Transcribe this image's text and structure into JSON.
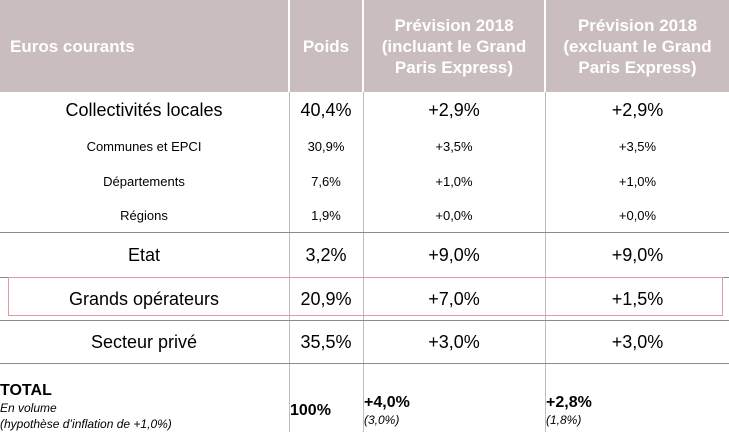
{
  "header": {
    "col_label": "Euros courants",
    "col_poids": "Poids",
    "col_with_gpe": "Prévision 2018\n(incluant le Grand\nParis Express)",
    "col_without_gpe": "Prévision 2018\n(excluant le Grand\nParis Express)"
  },
  "rows": [
    {
      "label": "Collectivités locales",
      "poids": "40,4%",
      "with_gpe": "+2,9%",
      "without_gpe": "+2,9%"
    },
    {
      "label": "Communes et EPCI",
      "poids": "30,9%",
      "with_gpe": "+3,5%",
      "without_gpe": "+3,5%"
    },
    {
      "label": "Départements",
      "poids": "7,6%",
      "with_gpe": "+1,0%",
      "without_gpe": "+1,0%"
    },
    {
      "label": "Régions",
      "poids": "1,9%",
      "with_gpe": "+0,0%",
      "without_gpe": "+0,0%"
    },
    {
      "label": "Etat",
      "poids": "3,2%",
      "with_gpe": "+9,0%",
      "without_gpe": "+9,0%"
    },
    {
      "label": "Grands opérateurs",
      "poids": "20,9%",
      "with_gpe": "+7,0%",
      "without_gpe": "+1,5%"
    },
    {
      "label": "Secteur privé",
      "poids": "35,5%",
      "with_gpe": "+3,0%",
      "without_gpe": "+3,0%"
    }
  ],
  "total": {
    "label": "TOTAL",
    "sub1": "En volume",
    "sub2": "(hypothèse d’inflation de +1,0%)",
    "poids": "100%",
    "with_gpe": "+4,0%",
    "with_gpe_volume": "(3,0%)",
    "without_gpe": "+2,8%",
    "without_gpe_volume": "(1,8%)"
  },
  "highlight_color": "#e09aa0",
  "header_bg": "#c9bebd"
}
